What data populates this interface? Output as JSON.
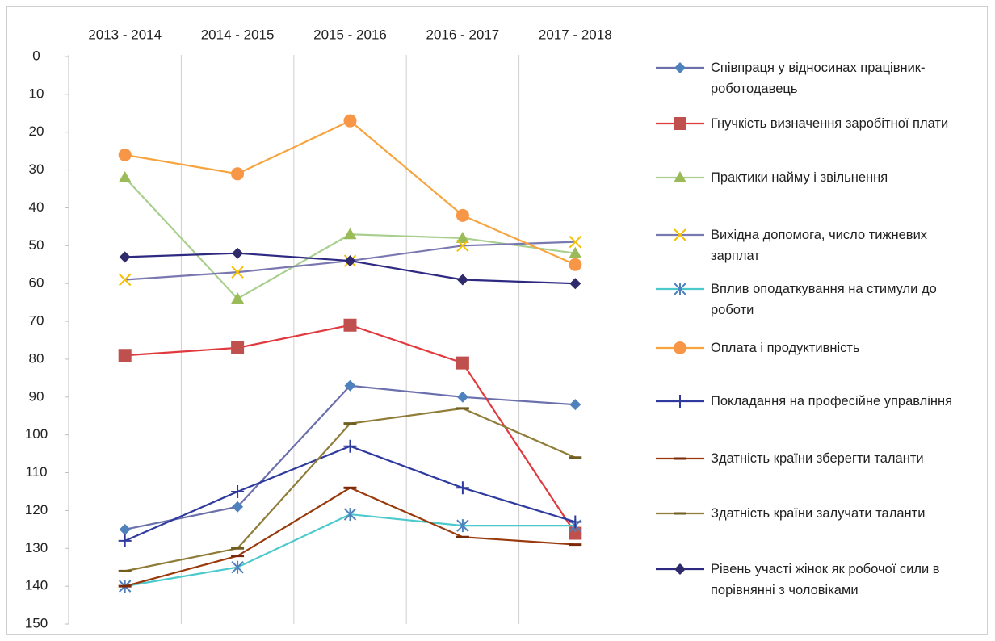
{
  "chart_data": {
    "type": "line",
    "categories": [
      "2013 - 2014",
      "2014 - 2015",
      "2015 - 2016",
      "2016 - 2017",
      "2017 - 2018"
    ],
    "ylim": [
      0,
      150
    ],
    "y_inverted": true,
    "yticks": [
      0,
      10,
      20,
      30,
      40,
      50,
      60,
      70,
      80,
      90,
      100,
      110,
      120,
      130,
      140,
      150
    ],
    "grid": true,
    "legend": "right",
    "series": [
      {
        "name": "Співпраця у відносинах працівник-роботодавець",
        "color": "#6b70ad",
        "marker": "diamond",
        "marker_color": "#4f81bd",
        "values": [
          125,
          119,
          87,
          90,
          92
        ]
      },
      {
        "name": "Гнучкість визначення заробітної плати",
        "color": "#e0393e",
        "marker": "square",
        "marker_color": "#c0504d",
        "values": [
          79,
          77,
          71,
          81,
          126
        ]
      },
      {
        "name": "Практики найму і звільнення",
        "color": "#a8cf8e",
        "marker": "triangle",
        "marker_color": "#9bbb59",
        "values": [
          32,
          64,
          47,
          48,
          52
        ]
      },
      {
        "name": "Вихідна допомога, число тижневих зарплат",
        "color": "#7a78b0",
        "marker": "x",
        "marker_color": "#f5c000",
        "values": [
          59,
          57,
          54,
          50,
          49
        ]
      },
      {
        "name": "Вплив оподаткування на стимули до роботи",
        "color": "#4cc9cc",
        "marker": "star",
        "marker_color": "#4f81bd",
        "values": [
          140,
          135,
          121,
          124,
          124
        ]
      },
      {
        "name": "Оплата і продуктивність",
        "color": "#f7a43e",
        "marker": "circle",
        "marker_color": "#f79646",
        "values": [
          26,
          31,
          17,
          42,
          55
        ]
      },
      {
        "name": "Покладання на професійне управління",
        "color": "#2f3a9e",
        "marker": "plus",
        "marker_color": "#2f3a9e",
        "values": [
          128,
          115,
          103,
          114,
          123
        ]
      },
      {
        "name": "Здатність країни зберегти таланти",
        "color": "#9a3a0c",
        "marker": "dash",
        "marker_color": "#7a2a08",
        "values": [
          140,
          132,
          114,
          127,
          129
        ]
      },
      {
        "name": "Здатність країни залучати таланти",
        "color": "#8f7c38",
        "marker": "dash",
        "marker_color": "#6f5e20",
        "values": [
          136,
          130,
          97,
          93,
          106
        ]
      },
      {
        "name": "Рівень участі жінок як робочої сили в порівнянні з чоловіками",
        "color": "#2e2a82",
        "marker": "diamond",
        "marker_color": "#2e2a6b",
        "values": [
          53,
          52,
          54,
          59,
          60
        ]
      }
    ]
  }
}
